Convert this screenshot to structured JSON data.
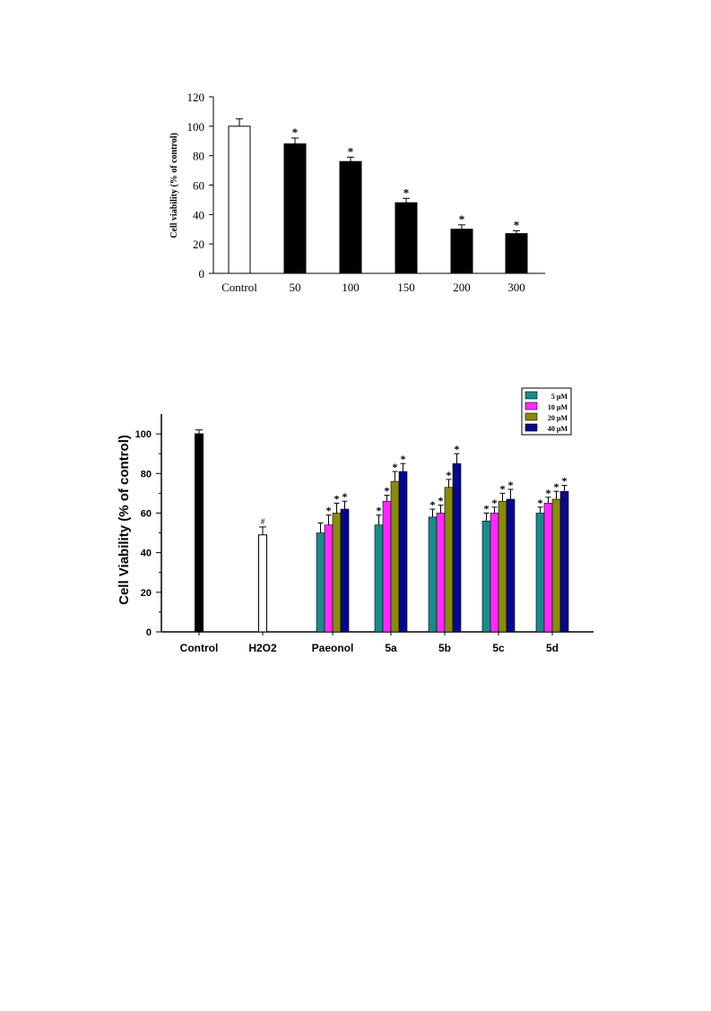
{
  "chart_data": [
    {
      "type": "bar",
      "title": "",
      "xlabel": "",
      "ylabel": "Cell viability (% of control)",
      "ylim": [
        0,
        120
      ],
      "yticks": [
        0,
        20,
        40,
        60,
        80,
        100,
        120
      ],
      "categories": [
        "Control",
        "50",
        "100",
        "150",
        "200",
        "300"
      ],
      "values": [
        100,
        88,
        76,
        48,
        30,
        27
      ],
      "errors": [
        5,
        4,
        3,
        3,
        3,
        2
      ],
      "significance": [
        "",
        "*",
        "*",
        "*",
        "*",
        "*"
      ],
      "colors": [
        "#ffffff",
        "#000000",
        "#000000",
        "#000000",
        "#000000",
        "#000000"
      ],
      "grid": false,
      "legend": "none"
    },
    {
      "type": "bar",
      "title": "",
      "xlabel": "",
      "ylabel": "Cell Viability (% of control)",
      "ylim": [
        0,
        110
      ],
      "yticks": [
        0,
        20,
        40,
        60,
        80,
        100
      ],
      "categories": [
        "Control",
        "H2O2",
        "Paeonol",
        "5a",
        "5b",
        "5c",
        "5d"
      ],
      "single": [
        {
          "category": "Control",
          "value": 100,
          "error": 2,
          "color": "#000000",
          "mark": ""
        },
        {
          "category": "H2O2",
          "value": 49,
          "error": 4,
          "color": "#ffffff",
          "mark": "#"
        }
      ],
      "series": [
        {
          "name": "5 μM",
          "color": "#1a8a8a",
          "values": [
            null,
            null,
            50,
            54,
            58,
            56,
            60
          ],
          "errors": [
            null,
            null,
            5,
            5,
            4,
            4,
            3
          ],
          "marks": [
            "",
            "",
            "",
            "*",
            "*",
            "*",
            "*"
          ]
        },
        {
          "name": "10 μM",
          "color": "#ff2aff",
          "values": [
            null,
            null,
            54,
            66,
            60,
            60,
            65
          ],
          "errors": [
            null,
            null,
            5,
            3,
            4,
            3,
            3
          ],
          "marks": [
            "",
            "",
            "*",
            "*",
            "*",
            "*",
            "*"
          ]
        },
        {
          "name": "20 μM",
          "color": "#8a8a10",
          "values": [
            null,
            null,
            60,
            76,
            73,
            66,
            67
          ],
          "errors": [
            null,
            null,
            5,
            5,
            4,
            4,
            4
          ],
          "marks": [
            "",
            "",
            "*",
            "*",
            "*",
            "*",
            "*"
          ]
        },
        {
          "name": "40 μM",
          "color": "#08088a",
          "values": [
            null,
            null,
            62,
            81,
            85,
            67,
            71
          ],
          "errors": [
            null,
            null,
            4,
            4,
            5,
            5,
            3
          ],
          "marks": [
            "",
            "",
            "*",
            "*",
            "*",
            "*",
            "*"
          ]
        }
      ],
      "grid": false,
      "legend": "top-right"
    }
  ]
}
